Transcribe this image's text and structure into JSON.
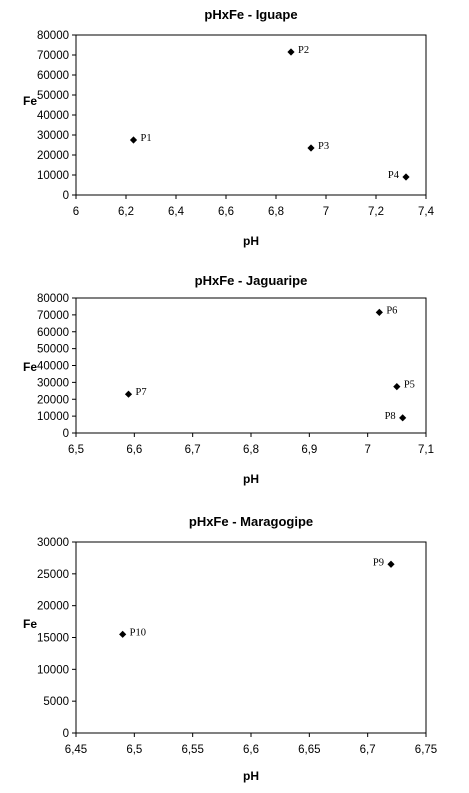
{
  "chart_data": [
    {
      "type": "scatter",
      "title": "pHxFe - Iguape",
      "xlabel": "pH",
      "ylabel": "Fe",
      "xlim": [
        6,
        7.4
      ],
      "ylim": [
        0,
        80000
      ],
      "xticks": [
        "6",
        "6,2",
        "6,4",
        "6,6",
        "6,8",
        "7",
        "7,2",
        "7,4"
      ],
      "yticks": [
        "0",
        "10000",
        "20000",
        "30000",
        "40000",
        "50000",
        "60000",
        "70000",
        "80000"
      ],
      "grid": false,
      "points": [
        {
          "label": "P1",
          "x": 6.23,
          "y": 27500,
          "label_side": "right"
        },
        {
          "label": "P2",
          "x": 6.86,
          "y": 71500,
          "label_side": "right"
        },
        {
          "label": "P3",
          "x": 6.94,
          "y": 23500,
          "label_side": "right"
        },
        {
          "label": "P4",
          "x": 7.32,
          "y": 9000,
          "label_side": "left"
        }
      ]
    },
    {
      "type": "scatter",
      "title": "pHxFe - Jaguaripe",
      "xlabel": "pH",
      "ylabel": "Fe",
      "xlim": [
        6.5,
        7.1
      ],
      "ylim": [
        0,
        80000
      ],
      "xticks": [
        "6,5",
        "6,6",
        "6,7",
        "6,8",
        "6,9",
        "7",
        "7,1"
      ],
      "yticks": [
        "0",
        "10000",
        "20000",
        "30000",
        "40000",
        "50000",
        "60000",
        "70000",
        "80000"
      ],
      "grid": false,
      "points": [
        {
          "label": "P5",
          "x": 7.05,
          "y": 27500,
          "label_side": "right"
        },
        {
          "label": "P6",
          "x": 7.02,
          "y": 71500,
          "label_side": "right"
        },
        {
          "label": "P7",
          "x": 6.59,
          "y": 23000,
          "label_side": "right"
        },
        {
          "label": "P8",
          "x": 7.06,
          "y": 9000,
          "label_side": "left"
        }
      ]
    },
    {
      "type": "scatter",
      "title": "pHxFe - Maragogipe",
      "xlabel": "pH",
      "ylabel": "Fe",
      "xlim": [
        6.45,
        6.75
      ],
      "ylim": [
        0,
        30000
      ],
      "xticks": [
        "6,45",
        "6,5",
        "6,55",
        "6,6",
        "6,65",
        "6,7",
        "6,75"
      ],
      "yticks": [
        "0",
        "5000",
        "10000",
        "15000",
        "20000",
        "25000",
        "30000"
      ],
      "grid": false,
      "points": [
        {
          "label": "P9",
          "x": 6.72,
          "y": 26500,
          "label_side": "left"
        },
        {
          "label": "P10",
          "x": 6.49,
          "y": 15500,
          "label_side": "right"
        }
      ]
    }
  ]
}
